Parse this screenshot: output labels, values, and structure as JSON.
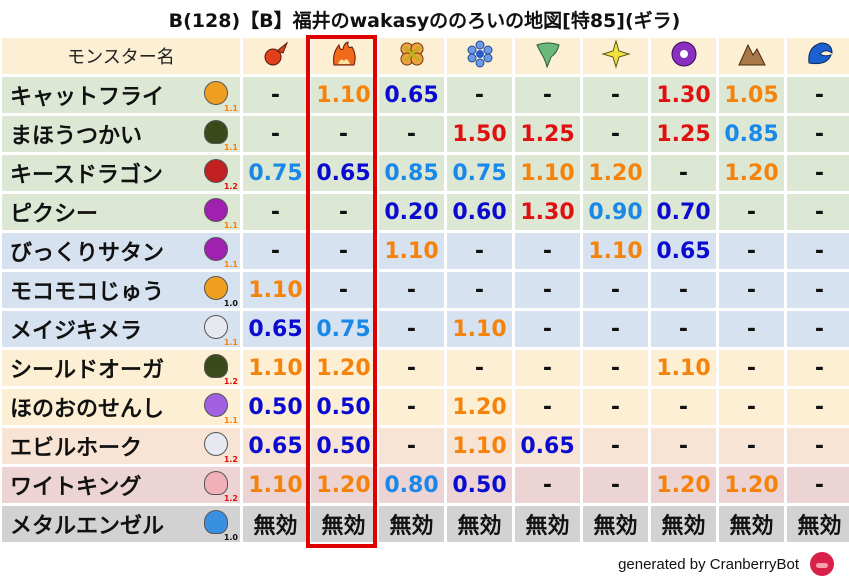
{
  "title": "B(128)【B】福井のwakasyののろいの地図[特85](ギラ)",
  "header": {
    "name_label": "モンスター名",
    "elements": [
      {
        "icon": "fireball-icon",
        "color": "#e0401a"
      },
      {
        "icon": "flame-icon",
        "color": "#f06a1a"
      },
      {
        "icon": "clover-cross-icon",
        "color": "#f0a040"
      },
      {
        "icon": "snowflake-icon",
        "color": "#6a9ae8"
      },
      {
        "icon": "tornado-icon",
        "color": "#6ab87a"
      },
      {
        "icon": "star-icon",
        "color": "#f0e040"
      },
      {
        "icon": "vortex-icon",
        "color": "#8a30c0"
      },
      {
        "icon": "mountain-icon",
        "color": "#a87848"
      },
      {
        "icon": "wave-icon",
        "color": "#1a60d0"
      }
    ]
  },
  "colors": {
    "dark_blue": "#0a0ad0",
    "light_blue": "#1a88e8",
    "orange": "#f5820a",
    "red": "#e01010",
    "black": "#111111",
    "highlight": "#e00000"
  },
  "rows": [
    {
      "name": "キャットフライ",
      "icon": "paw-icon",
      "icon_color": "#f0a020",
      "level": "1.1",
      "bg": "#dde8d4",
      "values": [
        "-",
        "1.10",
        "0.65",
        "-",
        "-",
        "-",
        "1.30",
        "1.05",
        "-"
      ]
    },
    {
      "name": "まほうつかい",
      "icon": "green-blob-icon",
      "icon_color": "#3a4a1a",
      "level": "1.1",
      "bg": "#dde8d4",
      "values": [
        "-",
        "-",
        "-",
        "1.50",
        "1.25",
        "-",
        "1.25",
        "0.85",
        "-"
      ]
    },
    {
      "name": "キースドラゴン",
      "icon": "dragon-icon",
      "icon_color": "#c02020",
      "level": "1.2",
      "bg": "#dde8d4",
      "values": [
        "0.75",
        "0.65",
        "0.85",
        "0.75",
        "1.10",
        "1.20",
        "-",
        "1.20",
        "-"
      ]
    },
    {
      "name": "ピクシー",
      "icon": "devil-icon",
      "icon_color": "#a020b0",
      "level": "1.1",
      "bg": "#dde8d4",
      "values": [
        "-",
        "-",
        "0.20",
        "0.60",
        "1.30",
        "0.90",
        "0.70",
        "-",
        "-"
      ]
    },
    {
      "name": "びっくりサタン",
      "icon": "devil-icon",
      "icon_color": "#a020b0",
      "level": "1.1",
      "bg": "#d6e2f0",
      "values": [
        "-",
        "-",
        "1.10",
        "-",
        "-",
        "1.10",
        "0.65",
        "-",
        "-"
      ]
    },
    {
      "name": "モコモコじゅう",
      "icon": "paw-icon",
      "icon_color": "#f0a020",
      "level": "1.0",
      "bg": "#d6e2f0",
      "values": [
        "1.10",
        "-",
        "-",
        "-",
        "-",
        "-",
        "-",
        "-",
        "-"
      ]
    },
    {
      "name": "メイジキメラ",
      "icon": "wing-icon",
      "icon_color": "#e8e8f0",
      "level": "1.1",
      "bg": "#d6e2f0",
      "values": [
        "0.65",
        "0.75",
        "-",
        "1.10",
        "-",
        "-",
        "-",
        "-",
        "-"
      ]
    },
    {
      "name": "シールドオーガ",
      "icon": "green-blob-icon",
      "icon_color": "#3a4a1a",
      "level": "1.2",
      "bg": "#fcefd4",
      "values": [
        "1.10",
        "1.20",
        "-",
        "-",
        "-",
        "-",
        "1.10",
        "-",
        "-"
      ]
    },
    {
      "name": "ほのおのせんし",
      "icon": "ghost-icon",
      "icon_color": "#a060e0",
      "level": "1.1",
      "bg": "#fcefd4",
      "values": [
        "0.50",
        "0.50",
        "-",
        "1.20",
        "-",
        "-",
        "-",
        "-",
        "-"
      ]
    },
    {
      "name": "エビルホーク",
      "icon": "wing-icon",
      "icon_color": "#e8e8f0",
      "level": "1.2",
      "bg": "#f8e4d4",
      "values": [
        "0.65",
        "0.50",
        "-",
        "1.10",
        "0.65",
        "-",
        "-",
        "-",
        "-"
      ]
    },
    {
      "name": "ワイトキング",
      "icon": "skull-icon",
      "icon_color": "#f0b0b8",
      "level": "1.2",
      "bg": "#ecd4d4",
      "values": [
        "1.10",
        "1.20",
        "0.80",
        "0.50",
        "-",
        "-",
        "1.20",
        "1.20",
        "-"
      ]
    },
    {
      "name": "メタルエンゼル",
      "icon": "slime-icon",
      "icon_color": "#3a90e0",
      "level": "1.0",
      "bg": "#d2d2d2",
      "values": [
        "無効",
        "無効",
        "無効",
        "無効",
        "無効",
        "無効",
        "無効",
        "無効",
        "無効"
      ]
    }
  ],
  "footer": {
    "text": "generated by CranberryBot",
    "icon": "cranberry-bot-icon"
  }
}
